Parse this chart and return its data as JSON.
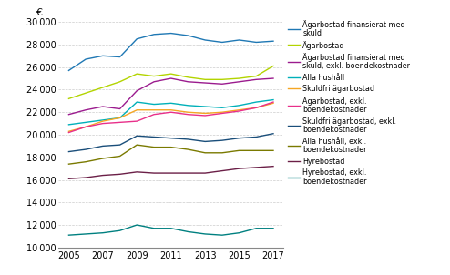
{
  "years": [
    2005,
    2006,
    2007,
    2008,
    2009,
    2010,
    2011,
    2012,
    2013,
    2014,
    2015,
    2016,
    2017
  ],
  "series": {
    "Ägarbostad finansierat med\nskuld": {
      "color": "#1f78b4",
      "values": [
        25700,
        26700,
        27000,
        26900,
        28500,
        28900,
        29000,
        28800,
        28400,
        28200,
        28400,
        28200,
        28300
      ]
    },
    "Ägarbostad": {
      "color": "#b3d400",
      "values": [
        23200,
        23700,
        24200,
        24700,
        25400,
        25200,
        25400,
        25100,
        24900,
        24900,
        25000,
        25200,
        26100
      ]
    },
    "Ägarbostad finansierat med\nskuld, exkl. boendekostnader": {
      "color": "#9b1b8e",
      "values": [
        21800,
        22200,
        22500,
        22300,
        23900,
        24700,
        25000,
        24700,
        24600,
        24500,
        24700,
        24900,
        25000
      ]
    },
    "Alla hushåll": {
      "color": "#00b0b9",
      "values": [
        20900,
        21100,
        21300,
        21500,
        22900,
        22700,
        22800,
        22600,
        22500,
        22400,
        22600,
        22900,
        23100
      ]
    },
    "Skuldfri ägarbostad": {
      "color": "#f5a623",
      "values": [
        20300,
        20700,
        21200,
        21500,
        22200,
        22200,
        22200,
        22000,
        21900,
        22000,
        22200,
        22400,
        22800
      ]
    },
    "Ägarbostad, exkl.\nboendekostnader": {
      "color": "#e8308a",
      "values": [
        20200,
        20700,
        21000,
        21100,
        21200,
        21800,
        22000,
        21800,
        21700,
        21900,
        22100,
        22400,
        22900
      ]
    },
    "Skuldfri ägarbostad, exkl.\nboendekostnader": {
      "color": "#1a4e7a",
      "values": [
        18500,
        18700,
        19000,
        19100,
        19900,
        19800,
        19700,
        19600,
        19400,
        19500,
        19700,
        19800,
        20100
      ]
    },
    "Alla hushåll, exkl.\nboendekostnader": {
      "color": "#7a7a00",
      "values": [
        17400,
        17600,
        17900,
        18100,
        19100,
        18900,
        18900,
        18700,
        18400,
        18400,
        18600,
        18600,
        18600
      ]
    },
    "Hyrebostad": {
      "color": "#6b1f47",
      "values": [
        16100,
        16200,
        16400,
        16500,
        16700,
        16600,
        16600,
        16600,
        16600,
        16800,
        17000,
        17100,
        17200
      ]
    },
    "Hyrebostad, exkl.\nboendekostnader": {
      "color": "#008080",
      "values": [
        11100,
        11200,
        11300,
        11500,
        12000,
        11700,
        11700,
        11400,
        11200,
        11100,
        11300,
        11700,
        11700
      ]
    }
  },
  "ylabel": "€",
  "ylim": [
    10000,
    30000
  ],
  "yticks": [
    10000,
    12000,
    14000,
    16000,
    18000,
    20000,
    22000,
    24000,
    26000,
    28000,
    30000
  ],
  "xticks": [
    2005,
    2007,
    2009,
    2011,
    2013,
    2015,
    2017
  ],
  "background_color": "#ffffff",
  "grid_color": "#cccccc",
  "figwidth": 4.94,
  "figheight": 3.02,
  "dpi": 100
}
